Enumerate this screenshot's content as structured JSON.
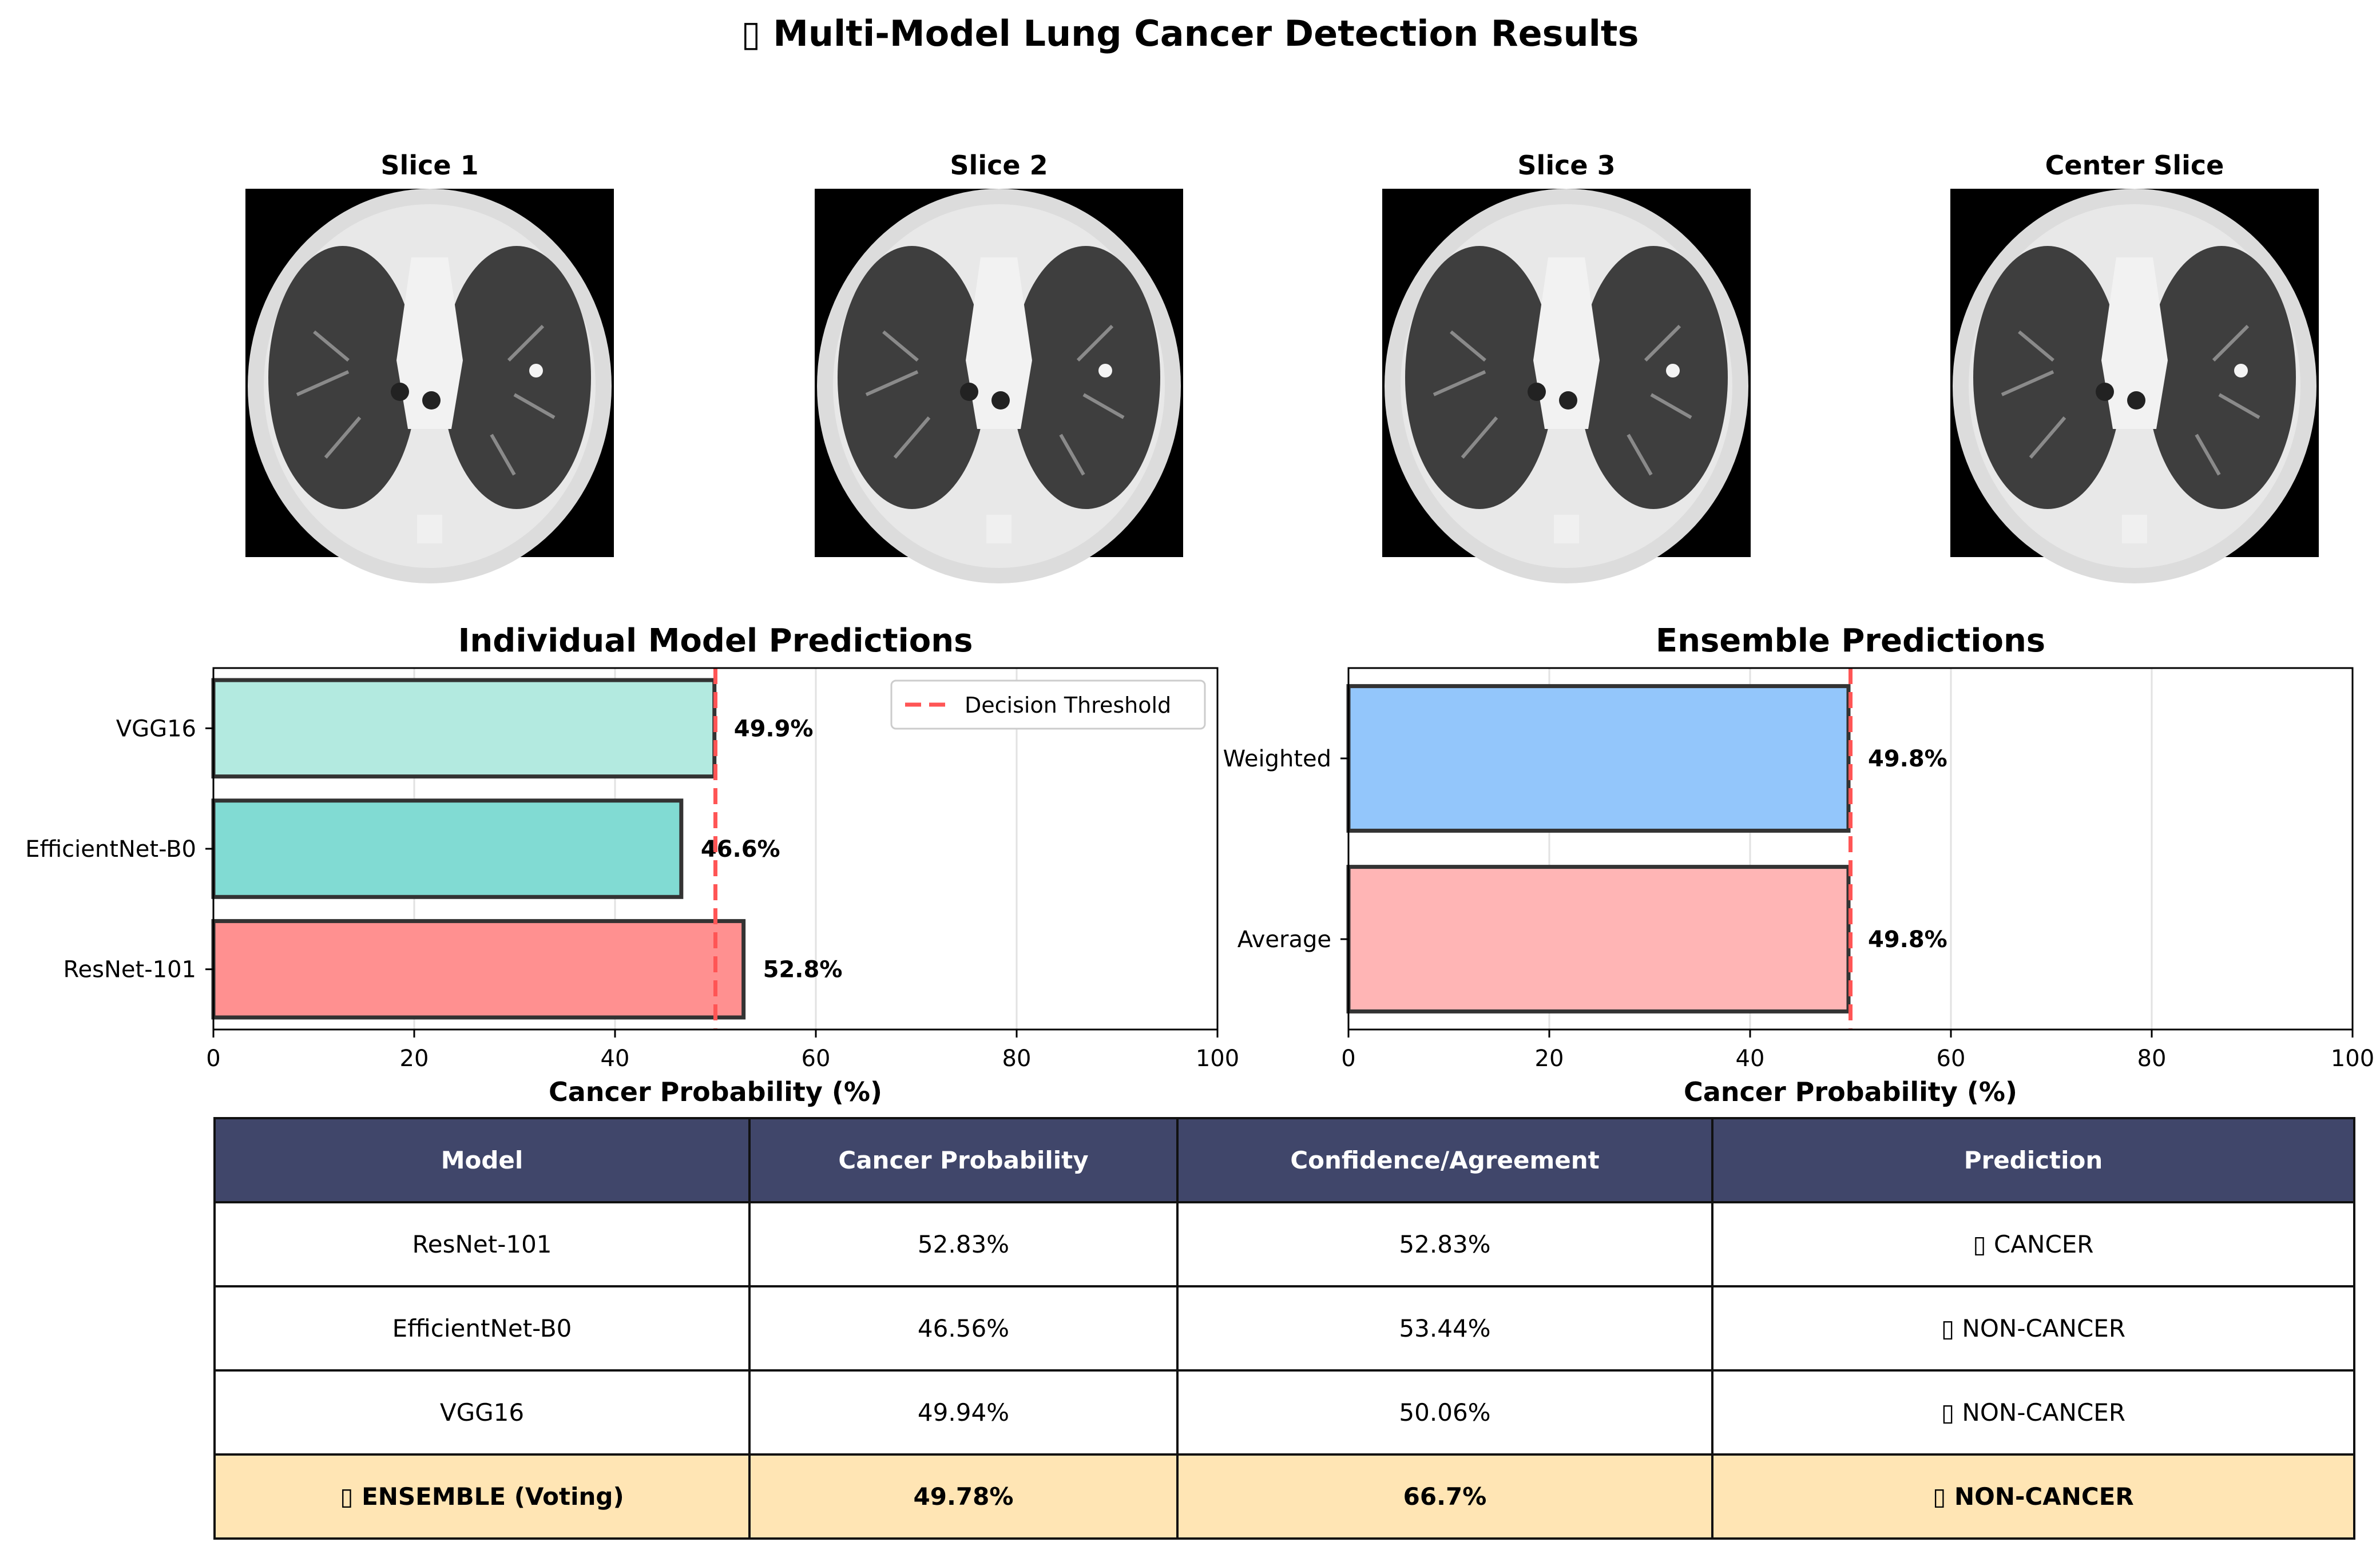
{
  "title": "▯ Multi-Model Lung Cancer Detection Results",
  "slices": [
    {
      "label": "Slice 1"
    },
    {
      "label": "Slice 2"
    },
    {
      "label": "Slice 3"
    },
    {
      "label": "Center Slice"
    }
  ],
  "colors": {
    "threshold": "#ff5555",
    "resnet": "#ff9090",
    "efficientnet": "#81dbd3",
    "vgg": "#b3eae0",
    "weighted": "#93c6fb",
    "average": "#ffb5b5",
    "table_header": "#40466a",
    "table_ensemble": "#ffe5b4"
  },
  "chart_data": [
    {
      "type": "bar",
      "orientation": "horizontal",
      "title": "Individual Model Predictions",
      "xlabel": "Cancer Probability (%)",
      "categories": [
        "ResNet-101",
        "EfficientNet-B0",
        "VGG16"
      ],
      "values": [
        52.8,
        46.6,
        49.9
      ],
      "value_labels": [
        "52.8%",
        "46.6%",
        "49.9%"
      ],
      "bar_colors": [
        "#ff9090",
        "#81dbd3",
        "#b3eae0"
      ],
      "xlim": [
        0,
        100
      ],
      "xticks": [
        0,
        20,
        40,
        60,
        80,
        100
      ],
      "threshold": 50,
      "legend": {
        "label": "Decision Threshold",
        "position": "top-right"
      },
      "grid": true
    },
    {
      "type": "bar",
      "orientation": "horizontal",
      "title": "Ensemble Predictions",
      "xlabel": "Cancer Probability (%)",
      "categories": [
        "Average",
        "Weighted"
      ],
      "values": [
        49.8,
        49.8
      ],
      "value_labels": [
        "49.8%",
        "49.8%"
      ],
      "bar_colors": [
        "#ffb5b5",
        "#93c6fb"
      ],
      "xlim": [
        0,
        100
      ],
      "xticks": [
        0,
        20,
        40,
        60,
        80,
        100
      ],
      "threshold": 50,
      "grid": true
    }
  ],
  "table": {
    "headers": [
      "Model",
      "Cancer Probability",
      "Confidence/Agreement",
      "Prediction"
    ],
    "rows": [
      [
        "ResNet-101",
        "52.83%",
        "52.83%",
        "▯ CANCER"
      ],
      [
        "EfficientNet-B0",
        "46.56%",
        "53.44%",
        "▯ NON-CANCER"
      ],
      [
        "VGG16",
        "49.94%",
        "50.06%",
        "▯ NON-CANCER"
      ],
      [
        "▯ ENSEMBLE (Voting)",
        "49.78%",
        "66.7%",
        "▯ NON-CANCER"
      ]
    ]
  }
}
